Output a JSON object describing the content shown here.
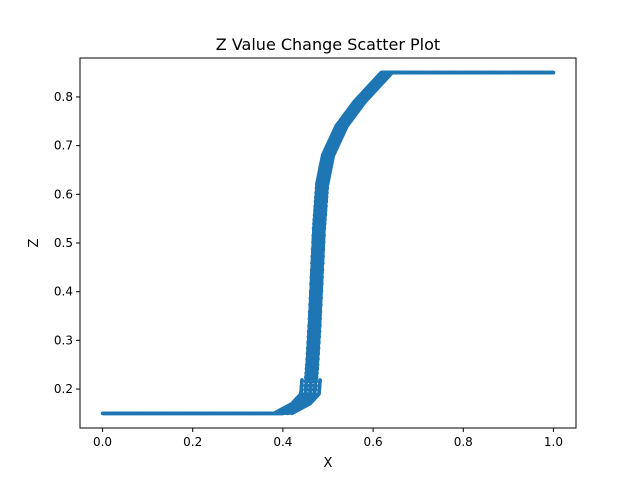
{
  "chart_data": {
    "type": "scatter",
    "title": "Z Value Change Scatter Plot",
    "xlabel": "X",
    "ylabel": "Z",
    "xlim": [
      -0.05,
      1.05
    ],
    "ylim": [
      0.12,
      0.88
    ],
    "xticks": [
      0.0,
      0.2,
      0.4,
      0.6,
      0.8,
      1.0
    ],
    "xtick_labels": [
      "0.0",
      "0.2",
      "0.4",
      "0.6",
      "0.8",
      "1.0"
    ],
    "yticks": [
      0.2,
      0.3,
      0.4,
      0.5,
      0.6,
      0.7,
      0.8
    ],
    "ytick_labels": [
      "0.2",
      "0.3",
      "0.4",
      "0.5",
      "0.6",
      "0.7",
      "0.8"
    ],
    "grid": false,
    "series": [
      {
        "color": "#1f77b4",
        "curve_points": [
          {
            "x": 0.0,
            "z": 0.15
          },
          {
            "x": 0.4,
            "z": 0.15
          },
          {
            "x": 0.44,
            "z": 0.17
          },
          {
            "x": 0.46,
            "z": 0.19
          },
          {
            "x": 0.465,
            "z": 0.25
          },
          {
            "x": 0.47,
            "z": 0.33
          },
          {
            "x": 0.475,
            "z": 0.43
          },
          {
            "x": 0.48,
            "z": 0.53
          },
          {
            "x": 0.487,
            "z": 0.62
          },
          {
            "x": 0.5,
            "z": 0.68
          },
          {
            "x": 0.53,
            "z": 0.74
          },
          {
            "x": 0.57,
            "z": 0.79
          },
          {
            "x": 0.6,
            "z": 0.82
          },
          {
            "x": 0.63,
            "z": 0.85
          },
          {
            "x": 1.0,
            "z": 0.85
          }
        ],
        "band_width_x": 0.04
      }
    ]
  }
}
